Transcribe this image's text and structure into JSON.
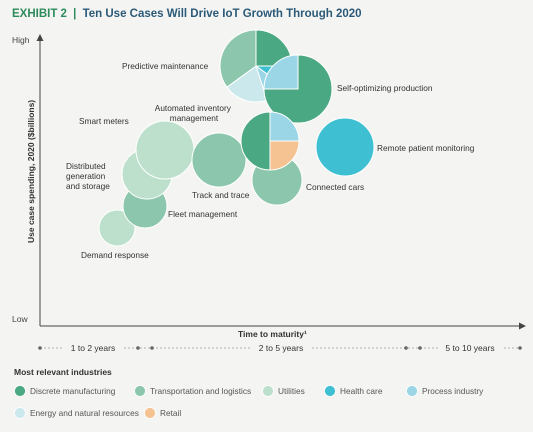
{
  "colors": {
    "discrete": "#4aa882",
    "transport": "#8cc7ad",
    "utilities": "#bde0cc",
    "healthcare": "#3fc0d2",
    "process": "#9ad6e6",
    "energy": "#cbe8ed",
    "retail": "#f5c291",
    "title_green": "#2e8b5b",
    "title_dark": "#2b5a78",
    "axis": "#444444"
  },
  "title": {
    "exhibit": "EXHIBIT 2",
    "separator": "|",
    "text": "Ten Use Cases Will Drive IoT Growth Through 2020"
  },
  "chart_data": {
    "type": "scatter",
    "title": "Ten Use Cases Will Drive IoT Growth Through 2020",
    "ylabel": "Use case spending, 2020 ($billions)",
    "xlabel": "Time to maturity¹",
    "y_ticks": [
      "High",
      "Low"
    ],
    "x_segments": [
      {
        "label": "1 to 2 years"
      },
      {
        "label": "2 to 5 years"
      },
      {
        "label": "5 to 10 years"
      }
    ],
    "points": [
      {
        "label": "Predictive maintenance",
        "time": "2 to 5 years",
        "spend_rank": 1,
        "slices": [
          [
            "discrete",
            0.25
          ],
          [
            "healthcare",
            0.1
          ],
          [
            "process",
            0.1
          ],
          [
            "energy",
            0.2
          ],
          [
            "transport",
            0.35
          ]
        ]
      },
      {
        "label": "Self-optimizing production",
        "time": "2 to 5 years",
        "spend_rank": 2,
        "slices": [
          [
            "discrete",
            0.75
          ],
          [
            "process",
            0.25
          ]
        ]
      },
      {
        "label": "Automated inventory management",
        "time": "2 to 5 years",
        "spend_rank": 3,
        "slices": [
          [
            "process",
            0.25
          ],
          [
            "retail",
            0.25
          ],
          [
            "discrete",
            0.5
          ]
        ]
      },
      {
        "label": "Remote patient monitoring",
        "time": "2 to 5 years",
        "spend_rank": 4,
        "slices": [
          [
            "healthcare",
            1
          ]
        ]
      },
      {
        "label": "Smart meters",
        "time": "2 to 5 years",
        "spend_rank": 5,
        "slices": [
          [
            "utilities",
            1
          ]
        ]
      },
      {
        "label": "Track and trace",
        "time": "2 to 5 years",
        "spend_rank": 6,
        "slices": [
          [
            "transport",
            1
          ]
        ]
      },
      {
        "label": "Connected cars",
        "time": "2 to 5 years",
        "spend_rank": 7,
        "slices": [
          [
            "transport",
            1
          ]
        ]
      },
      {
        "label": "Distributed generation and storage",
        "time": "1 to 2 years",
        "spend_rank": 8,
        "slices": [
          [
            "utilities",
            1
          ]
        ]
      },
      {
        "label": "Fleet management",
        "time": "1 to 2 years",
        "spend_rank": 9,
        "slices": [
          [
            "transport",
            1
          ]
        ]
      },
      {
        "label": "Demand response",
        "time": "1 to 2 years",
        "spend_rank": 10,
        "slices": [
          [
            "utilities",
            1
          ]
        ]
      }
    ],
    "legend_title": "Most relevant industries",
    "legend": [
      {
        "key": "discrete",
        "label": "Discrete manufacturing"
      },
      {
        "key": "transport",
        "label": "Transportation and logistics"
      },
      {
        "key": "utilities",
        "label": "Utilities"
      },
      {
        "key": "healthcare",
        "label": "Health care"
      },
      {
        "key": "process",
        "label": "Process industry"
      },
      {
        "key": "energy",
        "label": "Energy and natural resources"
      },
      {
        "key": "retail",
        "label": "Retail"
      }
    ]
  }
}
